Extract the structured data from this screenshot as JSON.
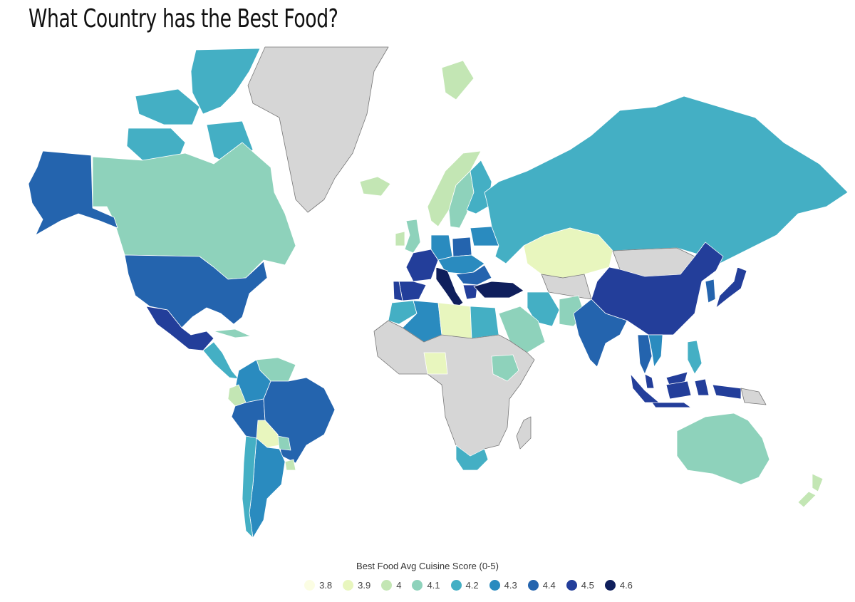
{
  "title": "What Country has the Best Food?",
  "legend": {
    "title": "Best Food Avg Cuisine Score (0-5)",
    "items": [
      {
        "label": "3.8",
        "color": "#fbfde3"
      },
      {
        "label": "3.9",
        "color": "#e8f6be"
      },
      {
        "label": "4",
        "color": "#c3e6b4"
      },
      {
        "label": "4.1",
        "color": "#8ed2bb"
      },
      {
        "label": "4.2",
        "color": "#44afc4"
      },
      {
        "label": "4.3",
        "color": "#2a8bbf"
      },
      {
        "label": "4.4",
        "color": "#2464ae"
      },
      {
        "label": "4.5",
        "color": "#233e9a"
      },
      {
        "label": "4.6",
        "color": "#0f1f5c"
      }
    ]
  },
  "no_data_color": "#d6d6d6",
  "regions": [
    {
      "name": "Greenland",
      "score": null
    },
    {
      "name": "Canada",
      "score": 4.1
    },
    {
      "name": "Canadian Arctic Islands",
      "score": 4.2
    },
    {
      "name": "Alaska",
      "score": 4.4
    },
    {
      "name": "United States",
      "score": 4.4
    },
    {
      "name": "Mexico",
      "score": 4.5
    },
    {
      "name": "Central America",
      "score": 4.2
    },
    {
      "name": "Cuba",
      "score": 4.1
    },
    {
      "name": "Venezuela",
      "score": 4.1
    },
    {
      "name": "Colombia",
      "score": 4.3
    },
    {
      "name": "Ecuador",
      "score": 4.0
    },
    {
      "name": "Peru",
      "score": 4.4
    },
    {
      "name": "Brazil",
      "score": 4.4
    },
    {
      "name": "Bolivia",
      "score": 3.9
    },
    {
      "name": "Paraguay",
      "score": 4.1
    },
    {
      "name": "Uruguay",
      "score": 4.0
    },
    {
      "name": "Argentina",
      "score": 4.3
    },
    {
      "name": "Chile",
      "score": 4.2
    },
    {
      "name": "Iceland",
      "score": 4.0
    },
    {
      "name": "Norway",
      "score": 4.0
    },
    {
      "name": "Sweden",
      "score": 4.1
    },
    {
      "name": "Finland",
      "score": 4.2
    },
    {
      "name": "United Kingdom",
      "score": 4.1
    },
    {
      "name": "Ireland",
      "score": 4.0
    },
    {
      "name": "Portugal",
      "score": 4.5
    },
    {
      "name": "Spain",
      "score": 4.5
    },
    {
      "name": "France",
      "score": 4.5
    },
    {
      "name": "Italy",
      "score": 4.6
    },
    {
      "name": "Germany",
      "score": 4.3
    },
    {
      "name": "Poland",
      "score": 4.4
    },
    {
      "name": "Central Europe",
      "score": 4.3
    },
    {
      "name": "Balkans",
      "score": 4.4
    },
    {
      "name": "Greece",
      "score": 4.5
    },
    {
      "name": "Turkey",
      "score": 4.6
    },
    {
      "name": "Russia",
      "score": 4.2
    },
    {
      "name": "Kazakhstan",
      "score": 3.9
    },
    {
      "name": "Mongolia",
      "score": null
    },
    {
      "name": "China",
      "score": 4.5
    },
    {
      "name": "Korea",
      "score": 4.4
    },
    {
      "name": "Japan",
      "score": 4.5
    },
    {
      "name": "India",
      "score": 4.4
    },
    {
      "name": "Pakistan",
      "score": 4.1
    },
    {
      "name": "Iran",
      "score": 4.2
    },
    {
      "name": "Saudi Arabia",
      "score": 4.1
    },
    {
      "name": "Egypt",
      "score": 4.2
    },
    {
      "name": "Libya",
      "score": 3.9
    },
    {
      "name": "Algeria",
      "score": 4.3
    },
    {
      "name": "Morocco",
      "score": 4.2
    },
    {
      "name": "Nigeria",
      "score": 3.9
    },
    {
      "name": "Ethiopia",
      "score": 4.1
    },
    {
      "name": "South Africa",
      "score": 4.2
    },
    {
      "name": "Thailand",
      "score": 4.4
    },
    {
      "name": "Vietnam",
      "score": 4.3
    },
    {
      "name": "Philippines",
      "score": 4.2
    },
    {
      "name": "Malaysia",
      "score": 4.5
    },
    {
      "name": "Indonesia",
      "score": 4.5
    },
    {
      "name": "Papua New Guinea",
      "score": null
    },
    {
      "name": "Australia",
      "score": 4.1
    },
    {
      "name": "New Zealand",
      "score": 4.0
    },
    {
      "name": "Svalbard",
      "score": 4.0
    },
    {
      "name": "Africa (other)",
      "score": null
    },
    {
      "name": "Madagascar",
      "score": null
    },
    {
      "name": "Central Asia",
      "score": null
    }
  ]
}
